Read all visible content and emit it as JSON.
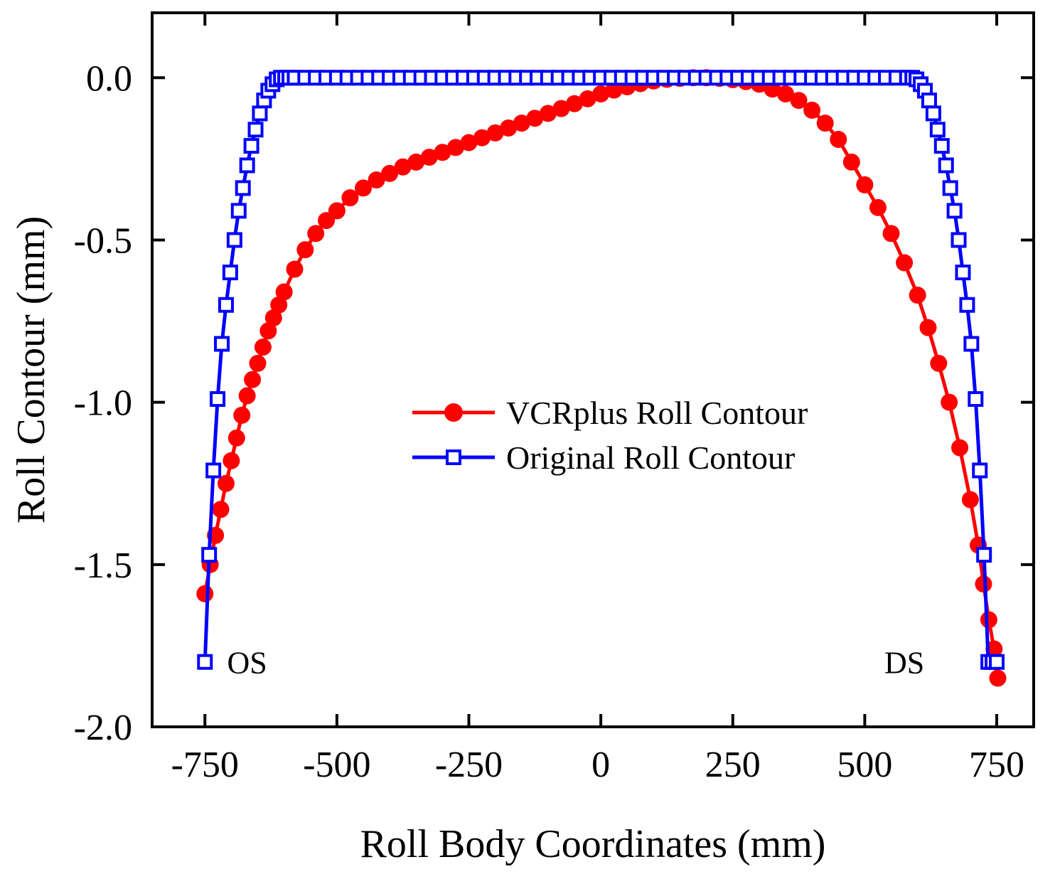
{
  "chart_data": {
    "type": "line",
    "xlabel": "Roll Body Coordinates (mm)",
    "ylabel": "Roll Contour (mm)",
    "xlim": [
      -850,
      820
    ],
    "ylim": [
      -2.0,
      0.2
    ],
    "xticks": [
      -750,
      -500,
      -250,
      0,
      250,
      500,
      750
    ],
    "xtick_labels": [
      "-750",
      "-500",
      "-250",
      "0",
      "250",
      "500",
      "750"
    ],
    "yticks": [
      0.0,
      -0.5,
      -1.0,
      -1.5,
      -2.0
    ],
    "ytick_labels": [
      "0.0",
      "-0.5",
      "-1.0",
      "-1.5",
      "-2.0"
    ],
    "legend_position": "center-right",
    "annotations": [
      {
        "text": "OS",
        "x": -670,
        "y": -1.8
      },
      {
        "text": "DS",
        "x": 575,
        "y": -1.8
      }
    ],
    "series": [
      {
        "name": "VCRplus Roll Contour",
        "color": "#ff0000",
        "marker": "filled-circle",
        "x": [
          -750,
          -740,
          -730,
          -720,
          -710,
          -700,
          -690,
          -680,
          -670,
          -660,
          -650,
          -640,
          -630,
          -620,
          -610,
          -600,
          -580,
          -560,
          -540,
          -520,
          -500,
          -475,
          -450,
          -425,
          -400,
          -375,
          -350,
          -325,
          -300,
          -275,
          -250,
          -225,
          -200,
          -175,
          -150,
          -125,
          -100,
          -75,
          -50,
          -25,
          0,
          25,
          50,
          75,
          100,
          125,
          150,
          175,
          200,
          225,
          250,
          275,
          300,
          325,
          350,
          375,
          400,
          425,
          450,
          475,
          500,
          525,
          550,
          575,
          600,
          620,
          640,
          660,
          680,
          700,
          715,
          725,
          735,
          745,
          752
        ],
        "y": [
          -1.59,
          -1.5,
          -1.41,
          -1.33,
          -1.25,
          -1.18,
          -1.11,
          -1.04,
          -0.98,
          -0.93,
          -0.88,
          -0.83,
          -0.78,
          -0.74,
          -0.7,
          -0.66,
          -0.59,
          -0.53,
          -0.48,
          -0.44,
          -0.41,
          -0.37,
          -0.34,
          -0.315,
          -0.295,
          -0.275,
          -0.26,
          -0.245,
          -0.23,
          -0.215,
          -0.2,
          -0.185,
          -0.17,
          -0.155,
          -0.14,
          -0.125,
          -0.11,
          -0.095,
          -0.08,
          -0.065,
          -0.05,
          -0.038,
          -0.028,
          -0.018,
          -0.01,
          -0.005,
          -0.002,
          0.0,
          0.0,
          -0.002,
          -0.006,
          -0.012,
          -0.02,
          -0.035,
          -0.05,
          -0.07,
          -0.1,
          -0.14,
          -0.19,
          -0.26,
          -0.33,
          -0.4,
          -0.48,
          -0.57,
          -0.67,
          -0.77,
          -0.88,
          -1.0,
          -1.14,
          -1.3,
          -1.44,
          -1.56,
          -1.67,
          -1.76,
          -1.85
        ]
      },
      {
        "name": "Original Roll Contour",
        "color": "#0000ff",
        "marker": "open-square",
        "x": [
          -750,
          -742,
          -734,
          -726,
          -718,
          -710,
          -702,
          -694,
          -686,
          -678,
          -670,
          -662,
          -654,
          -646,
          -638,
          -630,
          -622,
          -614,
          -606,
          -598,
          -590,
          -580,
          -560,
          -540,
          -520,
          -500,
          -480,
          -460,
          -440,
          -420,
          -400,
          -380,
          -360,
          -340,
          -320,
          -300,
          -280,
          -260,
          -240,
          -220,
          -200,
          -180,
          -160,
          -140,
          -120,
          -100,
          -80,
          -60,
          -40,
          -20,
          0,
          20,
          40,
          60,
          80,
          100,
          120,
          140,
          160,
          180,
          200,
          220,
          240,
          260,
          280,
          300,
          320,
          340,
          360,
          380,
          400,
          420,
          440,
          460,
          480,
          500,
          520,
          540,
          560,
          580,
          590,
          598,
          606,
          614,
          622,
          630,
          638,
          646,
          654,
          662,
          670,
          678,
          686,
          694,
          702,
          710,
          718,
          726,
          734,
          742,
          750
        ],
        "y": [
          -1.8,
          -1.47,
          -1.21,
          -0.99,
          -0.82,
          -0.7,
          -0.6,
          -0.5,
          -0.41,
          -0.34,
          -0.27,
          -0.21,
          -0.16,
          -0.11,
          -0.07,
          -0.04,
          -0.02,
          -0.005,
          0.0,
          0.0,
          0.0,
          0.0,
          0.0,
          0.0,
          0.0,
          0.0,
          0.0,
          0.0,
          0.0,
          0.0,
          0.0,
          0.0,
          0.0,
          0.0,
          0.0,
          0.0,
          0.0,
          0.0,
          0.0,
          0.0,
          0.0,
          0.0,
          0.0,
          0.0,
          0.0,
          0.0,
          0.0,
          0.0,
          0.0,
          0.0,
          0.0,
          0.0,
          0.0,
          0.0,
          0.0,
          0.0,
          0.0,
          0.0,
          0.0,
          0.0,
          0.0,
          0.0,
          0.0,
          0.0,
          0.0,
          0.0,
          0.0,
          0.0,
          0.0,
          0.0,
          0.0,
          0.0,
          0.0,
          0.0,
          0.0,
          0.0,
          0.0,
          0.0,
          0.0,
          0.0,
          0.0,
          -0.005,
          -0.02,
          -0.04,
          -0.07,
          -0.11,
          -0.16,
          -0.21,
          -0.27,
          -0.34,
          -0.41,
          -0.5,
          -0.6,
          -0.7,
          -0.82,
          -0.99,
          -1.21,
          -1.47,
          -1.8,
          -1.8,
          -1.8
        ]
      }
    ]
  }
}
